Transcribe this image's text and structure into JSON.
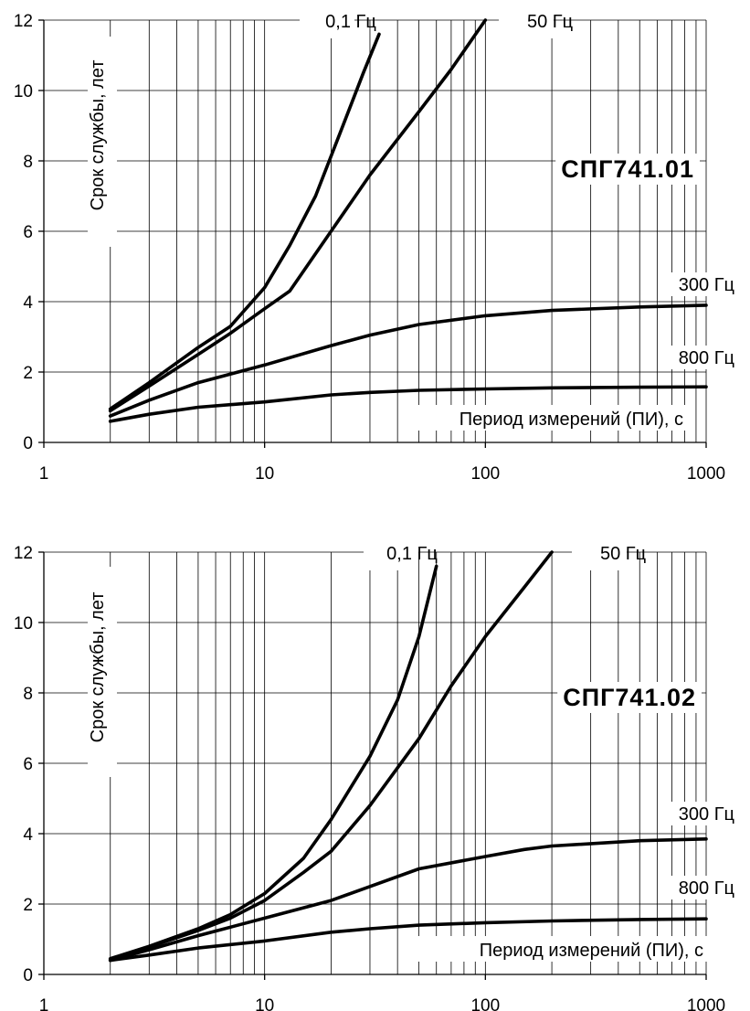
{
  "chart_data": [
    {
      "type": "line",
      "title": "СПГ741.01",
      "xlabel": "Период измерений (ПИ), с",
      "ylabel": "Срок службы, лет",
      "xscale": "log",
      "xlim": [
        1,
        1000
      ],
      "ylim": [
        0,
        12
      ],
      "xticks": [
        "1",
        "10",
        "100",
        "1000"
      ],
      "yticks": [
        "0",
        "2",
        "4",
        "6",
        "8",
        "10",
        "12"
      ],
      "grid": true,
      "series": [
        {
          "name": "0,1 Гц",
          "x": [
            2,
            3,
            5,
            7,
            10,
            13,
            17,
            22,
            28,
            33
          ],
          "y": [
            0.95,
            1.7,
            2.7,
            3.3,
            4.4,
            5.6,
            7.0,
            8.8,
            10.5,
            11.6
          ]
        },
        {
          "name": "50 Гц",
          "x": [
            2,
            3,
            5,
            7,
            10,
            13,
            20,
            30,
            50,
            70,
            100
          ],
          "y": [
            0.9,
            1.6,
            2.5,
            3.1,
            3.8,
            4.3,
            6.0,
            7.6,
            9.4,
            10.6,
            12.0
          ]
        },
        {
          "name": "300 Гц",
          "x": [
            2,
            3,
            5,
            10,
            20,
            30,
            50,
            100,
            200,
            500,
            1000
          ],
          "y": [
            0.75,
            1.2,
            1.7,
            2.2,
            2.75,
            3.05,
            3.35,
            3.6,
            3.75,
            3.85,
            3.9
          ]
        },
        {
          "name": "800 Гц",
          "x": [
            2,
            3,
            5,
            10,
            20,
            30,
            50,
            100,
            200,
            500,
            1000
          ],
          "y": [
            0.6,
            0.8,
            1.0,
            1.15,
            1.35,
            1.42,
            1.48,
            1.52,
            1.55,
            1.57,
            1.58
          ]
        }
      ]
    },
    {
      "type": "line",
      "title": "СПГ741.02",
      "xlabel": "Период измерений (ПИ), с",
      "ylabel": "Срок службы, лет",
      "xscale": "log",
      "xlim": [
        1,
        1000
      ],
      "ylim": [
        0,
        12
      ],
      "xticks": [
        "1",
        "10",
        "100",
        "1000"
      ],
      "yticks": [
        "0",
        "2",
        "4",
        "6",
        "8",
        "10",
        "12"
      ],
      "grid": true,
      "series": [
        {
          "name": "0,1 Гц",
          "x": [
            2,
            3,
            5,
            7,
            10,
            15,
            20,
            30,
            40,
            50,
            60
          ],
          "y": [
            0.45,
            0.8,
            1.3,
            1.7,
            2.3,
            3.3,
            4.4,
            6.2,
            7.8,
            9.6,
            11.6
          ]
        },
        {
          "name": "50 Гц",
          "x": [
            2,
            3,
            5,
            7,
            10,
            15,
            20,
            30,
            50,
            70,
            100,
            150,
            200
          ],
          "y": [
            0.42,
            0.78,
            1.25,
            1.6,
            2.1,
            2.9,
            3.5,
            4.8,
            6.7,
            8.2,
            9.6,
            11.0,
            12.0
          ]
        },
        {
          "name": "300 Гц",
          "x": [
            2,
            3,
            5,
            10,
            20,
            30,
            50,
            100,
            150,
            200,
            500,
            1000
          ],
          "y": [
            0.4,
            0.7,
            1.1,
            1.6,
            2.1,
            2.5,
            3.0,
            3.35,
            3.55,
            3.65,
            3.8,
            3.85
          ]
        },
        {
          "name": "800 Гц",
          "x": [
            2,
            3,
            5,
            10,
            20,
            30,
            50,
            100,
            200,
            500,
            1000
          ],
          "y": [
            0.4,
            0.55,
            0.75,
            0.95,
            1.2,
            1.3,
            1.4,
            1.47,
            1.52,
            1.56,
            1.58
          ]
        }
      ]
    }
  ]
}
